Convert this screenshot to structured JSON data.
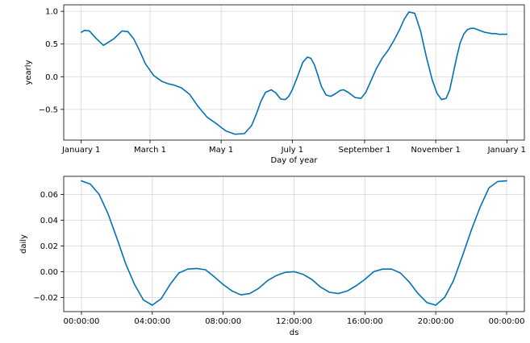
{
  "chart_data": [
    {
      "type": "line",
      "xlabel": "Day of year",
      "ylabel": "yearly",
      "x_tick_labels": [
        "January 1",
        "March 1",
        "May 1",
        "July 1",
        "September 1",
        "November 1",
        "January 1"
      ],
      "x_tick_days": [
        0,
        59,
        120,
        181,
        243,
        304,
        365
      ],
      "xlim": [
        -15,
        380
      ],
      "ylim": [
        -0.97,
        1.1
      ],
      "y_ticks": [
        1.0,
        0.5,
        0.0,
        -0.5
      ],
      "y_tick_labels": [
        "1.0",
        "0.5",
        "0.0",
        "−0.5"
      ],
      "grid": true,
      "color": "#0072B2",
      "series": [
        {
          "x": [
            0,
            3,
            7,
            12,
            19,
            28,
            35,
            40,
            45,
            50,
            55,
            62,
            69,
            75,
            80,
            86,
            93,
            100,
            108,
            116,
            124,
            132,
            140,
            146,
            150,
            154,
            158,
            163,
            167,
            171,
            175,
            178,
            181,
            185,
            190,
            194,
            197,
            200,
            203,
            206,
            210,
            214,
            218,
            222,
            225,
            229,
            235,
            240,
            244,
            248,
            253,
            258,
            263,
            268,
            273,
            277,
            281,
            286,
            291,
            296,
            301,
            305,
            309,
            313,
            316,
            319,
            322,
            325,
            328,
            331,
            334,
            337,
            340,
            343,
            346,
            349,
            352,
            355,
            358,
            361,
            365
          ],
          "y": [
            0.68,
            0.71,
            0.7,
            0.6,
            0.48,
            0.58,
            0.7,
            0.69,
            0.58,
            0.4,
            0.2,
            0.02,
            -0.07,
            -0.11,
            -0.13,
            -0.17,
            -0.27,
            -0.45,
            -0.62,
            -0.72,
            -0.83,
            -0.88,
            -0.87,
            -0.75,
            -0.58,
            -0.38,
            -0.24,
            -0.2,
            -0.25,
            -0.34,
            -0.35,
            -0.3,
            -0.2,
            -0.02,
            0.22,
            0.3,
            0.28,
            0.18,
            0.02,
            -0.15,
            -0.28,
            -0.3,
            -0.26,
            -0.21,
            -0.2,
            -0.24,
            -0.32,
            -0.33,
            -0.24,
            -0.08,
            0.12,
            0.28,
            0.4,
            0.55,
            0.72,
            0.88,
            0.99,
            0.97,
            0.7,
            0.3,
            -0.05,
            -0.25,
            -0.35,
            -0.33,
            -0.2,
            0.05,
            0.3,
            0.52,
            0.65,
            0.72,
            0.74,
            0.74,
            0.72,
            0.7,
            0.68,
            0.67,
            0.66,
            0.66,
            0.65,
            0.65,
            0.65
          ]
        }
      ]
    },
    {
      "type": "line",
      "xlabel": "ds",
      "ylabel": "daily",
      "x_tick_labels": [
        "00:00:00",
        "04:00:00",
        "08:00:00",
        "12:00:00",
        "16:00:00",
        "20:00:00",
        "00:00:00"
      ],
      "x_tick_hours": [
        0,
        4,
        8,
        12,
        16,
        20,
        24
      ],
      "xlim": [
        -1.0,
        25.0
      ],
      "ylim": [
        -0.031,
        0.074
      ],
      "y_ticks": [
        0.06,
        0.04,
        0.02,
        0.0,
        -0.02
      ],
      "y_tick_labels": [
        "0.06",
        "0.04",
        "0.02",
        "0.00",
        "−0.02"
      ],
      "grid": true,
      "color": "#0072B2",
      "series": [
        {
          "x": [
            0,
            0.5,
            1,
            1.5,
            2,
            2.5,
            3,
            3.5,
            4,
            4.5,
            5,
            5.5,
            6,
            6.5,
            7,
            7.5,
            8,
            8.5,
            9,
            9.5,
            10,
            10.5,
            11,
            11.5,
            12,
            12.5,
            13,
            13.5,
            14,
            14.5,
            15,
            15.5,
            16,
            16.5,
            17,
            17.5,
            18,
            18.5,
            19,
            19.5,
            20,
            20.5,
            21,
            21.5,
            22,
            22.5,
            23,
            23.5,
            24
          ],
          "y": [
            0.0705,
            0.068,
            0.06,
            0.045,
            0.026,
            0.006,
            -0.01,
            -0.022,
            -0.026,
            -0.021,
            -0.01,
            -0.001,
            0.002,
            0.0025,
            0.0015,
            -0.004,
            -0.01,
            -0.015,
            -0.018,
            -0.017,
            -0.013,
            -0.007,
            -0.003,
            -0.0005,
            0.0,
            -0.002,
            -0.006,
            -0.012,
            -0.016,
            -0.017,
            -0.015,
            -0.011,
            -0.006,
            0.0,
            0.002,
            0.002,
            -0.001,
            -0.008,
            -0.017,
            -0.024,
            -0.026,
            -0.02,
            -0.007,
            0.012,
            0.032,
            0.05,
            0.065,
            0.07,
            0.0705
          ]
        }
      ]
    }
  ]
}
